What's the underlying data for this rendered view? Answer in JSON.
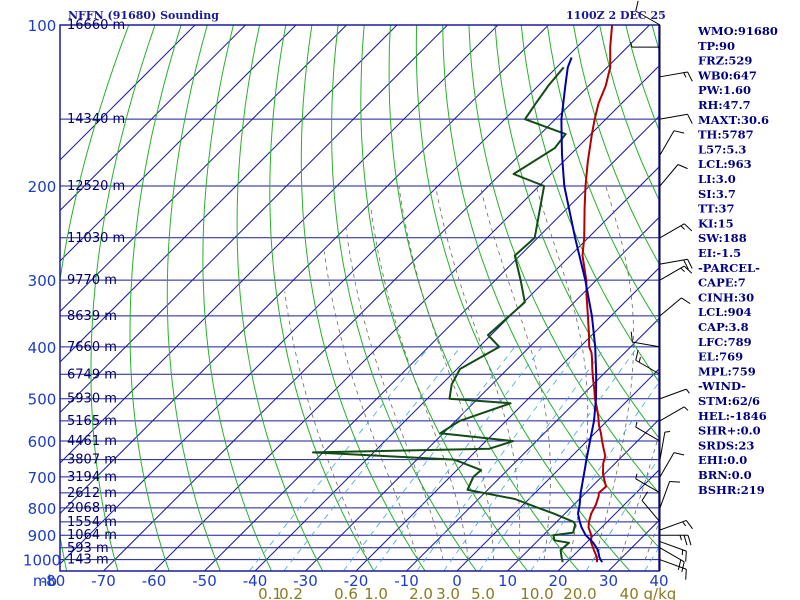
{
  "chart_data": {
    "type": "skew-t sounding",
    "title": "NFFN (91680) Sounding",
    "time": "1100Z  2 DEC 25",
    "pressure_axis_label": "mb",
    "pressure_ticks": [
      100,
      200,
      300,
      400,
      500,
      600,
      700,
      800,
      900,
      1000
    ],
    "pressure_tick_labels": [
      "100",
      "200",
      "300",
      "400",
      "500",
      "600",
      "700",
      "800",
      "900",
      "1000"
    ],
    "temperature_ticks": [
      -80,
      -70,
      -60,
      -50,
      -40,
      -30,
      -20,
      -10,
      0,
      10,
      20,
      30,
      40
    ],
    "temperature_tick_labels": [
      "-80",
      "-70",
      "-60",
      "-50",
      "-40",
      "-30",
      "-20",
      "-10",
      "0",
      "10",
      "20",
      "30",
      "40"
    ],
    "temperature_unit": "C",
    "mixing_ratio_labels": [
      "0.1",
      "0.2",
      "0.6",
      "1.0",
      "2.0",
      "3.0",
      "5.0",
      "10.0",
      "20.0",
      "40 g/kg"
    ],
    "heights": [
      {
        "p": 100,
        "label": "16660 m"
      },
      {
        "p": 150,
        "label": "14340 m"
      },
      {
        "p": 200,
        "label": "12520 m"
      },
      {
        "p": 250,
        "label": "11030 m"
      },
      {
        "p": 300,
        "label": "9770 m"
      },
      {
        "p": 350,
        "label": "8639 m"
      },
      {
        "p": 400,
        "label": "7660 m"
      },
      {
        "p": 450,
        "label": "6749 m"
      },
      {
        "p": 500,
        "label": "5930 m"
      },
      {
        "p": 550,
        "label": "5165 m"
      },
      {
        "p": 600,
        "label": "4461 m"
      },
      {
        "p": 650,
        "label": "3807 m"
      },
      {
        "p": 700,
        "label": "3194 m"
      },
      {
        "p": 750,
        "label": "2612 m"
      },
      {
        "p": 800,
        "label": "2068 m"
      },
      {
        "p": 850,
        "label": "1554 m"
      },
      {
        "p": 900,
        "label": "1064 m"
      },
      {
        "p": 950,
        "label": "593 m"
      },
      {
        "p": 1000,
        "label": "143 m"
      }
    ],
    "series": [
      {
        "name": "Temperature",
        "color": "#b40000",
        "points": [
          [
            1011,
            26
          ],
          [
            990,
            25
          ],
          [
            960,
            23
          ],
          [
            930,
            21
          ],
          [
            900,
            19.5
          ],
          [
            870,
            17.4
          ],
          [
            850,
            16.4
          ],
          [
            820,
            15.2
          ],
          [
            790,
            14.4
          ],
          [
            760,
            13.2
          ],
          [
            750,
            12.6
          ],
          [
            730,
            12.8
          ],
          [
            710,
            11.2
          ],
          [
            690,
            9.6
          ],
          [
            660,
            7.6
          ],
          [
            640,
            6.6
          ],
          [
            620,
            4.8
          ],
          [
            600,
            3.0
          ],
          [
            580,
            1.2
          ],
          [
            560,
            -0.8
          ],
          [
            540,
            -2.6
          ],
          [
            520,
            -4.6
          ],
          [
            500,
            -6.8
          ],
          [
            480,
            -8.8
          ],
          [
            460,
            -11.0
          ],
          [
            440,
            -13.2
          ],
          [
            420,
            -15.4
          ],
          [
            410,
            -16.6
          ],
          [
            400,
            -18.2
          ],
          [
            380,
            -20.6
          ],
          [
            350,
            -24.6
          ],
          [
            320,
            -29.0
          ],
          [
            300,
            -32.0
          ],
          [
            270,
            -37.6
          ],
          [
            250,
            -40.8
          ],
          [
            220,
            -46.6
          ],
          [
            200,
            -50.8
          ],
          [
            180,
            -55.2
          ],
          [
            160,
            -59.8
          ],
          [
            150,
            -62.2
          ],
          [
            140,
            -64.6
          ],
          [
            130,
            -66.6
          ],
          [
            120,
            -69.4
          ],
          [
            110,
            -73.4
          ],
          [
            100,
            -77.4
          ]
        ]
      },
      {
        "name": "Dewpoint",
        "color": "#124c12",
        "points": [
          [
            1011,
            19.2
          ],
          [
            990,
            18.0
          ],
          [
            960,
            16.4
          ],
          [
            930,
            16.6
          ],
          [
            920,
            13.2
          ],
          [
            900,
            12.0
          ],
          [
            890,
            15.4
          ],
          [
            860,
            14.2
          ],
          [
            850,
            13.4
          ],
          [
            820,
            7.8
          ],
          [
            800,
            3.6
          ],
          [
            770,
            -2.8
          ],
          [
            740,
            -14.0
          ],
          [
            700,
            -15.4
          ],
          [
            680,
            -15.2
          ],
          [
            650,
            -22.6
          ],
          [
            630,
            -52.0
          ],
          [
            620,
            -17.8
          ],
          [
            600,
            -14.6
          ],
          [
            580,
            -30.6
          ],
          [
            550,
            -29.2
          ],
          [
            510,
            -22.6
          ],
          [
            500,
            -35.6
          ],
          [
            470,
            -38.0
          ],
          [
            440,
            -39.4
          ],
          [
            400,
            -36.0
          ],
          [
            380,
            -40.6
          ],
          [
            330,
            -39.8
          ],
          [
            300,
            -45.0
          ],
          [
            270,
            -51.0
          ],
          [
            250,
            -50.6
          ],
          [
            200,
            -59.0
          ],
          [
            190,
            -67.4
          ],
          [
            170,
            -64.4
          ],
          [
            160,
            -65.0
          ],
          [
            150,
            -76.0
          ],
          [
            140,
            -77.0
          ],
          [
            130,
            -78.0
          ],
          [
            120,
            -78.6
          ]
        ]
      },
      {
        "name": "Parcel",
        "color": "#0000a8",
        "points": [
          [
            1011,
            27.0
          ],
          [
            990,
            25.5
          ],
          [
            960,
            23.8
          ],
          [
            930,
            21.4
          ],
          [
            900,
            18.4
          ],
          [
            870,
            16.0
          ],
          [
            850,
            14.6
          ],
          [
            820,
            12.6
          ],
          [
            790,
            11.2
          ],
          [
            750,
            9.0
          ],
          [
            700,
            6.4
          ],
          [
            650,
            3.6
          ],
          [
            600,
            0.6
          ],
          [
            550,
            -2.6
          ],
          [
            500,
            -6.6
          ],
          [
            450,
            -11.4
          ],
          [
            400,
            -17.0
          ],
          [
            350,
            -23.8
          ],
          [
            300,
            -32.2
          ],
          [
            250,
            -42.6
          ],
          [
            200,
            -55.0
          ],
          [
            175,
            -61.6
          ],
          [
            160,
            -65.8
          ],
          [
            150,
            -68.8
          ],
          [
            140,
            -71.6
          ],
          [
            130,
            -74.6
          ],
          [
            120,
            -77.8
          ],
          [
            115,
            -79.0
          ]
        ]
      }
    ],
    "dry_adiabats_C": [
      -80,
      -70,
      -60,
      -50,
      -40,
      -30,
      -20,
      -10,
      0,
      10,
      20,
      30,
      40,
      50,
      60,
      70,
      80,
      90,
      100,
      110,
      120,
      130,
      140,
      150
    ],
    "moist_adiabats_C": [
      -20,
      -10,
      -5,
      0,
      5,
      10,
      15,
      20,
      25,
      30,
      35,
      40
    ],
    "mixing_ratios": [
      0.1,
      0.2,
      0.6,
      1.0,
      2.0,
      3.0,
      5.0,
      10.0,
      20.0,
      40.0
    ],
    "indices": [
      "WMO:91680",
      "TP:90",
      "FRZ:529",
      "WB0:647",
      "PW:1.60",
      "RH:47.7",
      "MAXT:30.6",
      "TH:5787",
      "L57:5.3",
      "LCL:963",
      "LI:3.0",
      "SI:3.7",
      "TT:37",
      "KI:15",
      "SW:188",
      "EI:-1.5",
      "-PARCEL-",
      "CAPE:7",
      "CINH:30",
      "LCL:904",
      "CAP:3.8",
      "LFC:789",
      "EL:769",
      "MPL:759",
      "-WIND-",
      "STM:62/6",
      "HEL:-1846",
      "SHR+:0.0",
      "SRDS:23",
      "EHI:0.0",
      "BRN:0.0",
      "BSHR:219"
    ],
    "winds": [
      {
        "p": 1000,
        "dir": 110,
        "spd": 10
      },
      {
        "p": 950,
        "dir": 120,
        "spd": 20
      },
      {
        "p": 925,
        "dir": 110,
        "spd": 15
      },
      {
        "p": 900,
        "dir": 90,
        "spd": 25
      },
      {
        "p": 880,
        "dir": 70,
        "spd": 15
      },
      {
        "p": 850,
        "dir": 320,
        "spd": 10
      },
      {
        "p": 800,
        "dir": 20,
        "spd": 10
      },
      {
        "p": 750,
        "dir": 300,
        "spd": 5
      },
      {
        "p": 700,
        "dir": 30,
        "spd": 10
      },
      {
        "p": 650,
        "dir": 10,
        "spd": 5
      },
      {
        "p": 600,
        "dir": 300,
        "spd": 5
      },
      {
        "p": 550,
        "dir": 60,
        "spd": 5
      },
      {
        "p": 500,
        "dir": 70,
        "spd": 5
      },
      {
        "p": 450,
        "dir": 300,
        "spd": 15
      },
      {
        "p": 400,
        "dir": 280,
        "spd": 10
      },
      {
        "p": 350,
        "dir": 50,
        "spd": 10
      },
      {
        "p": 300,
        "dir": 60,
        "spd": 15
      },
      {
        "p": 280,
        "dir": 80,
        "spd": 20
      },
      {
        "p": 250,
        "dir": 60,
        "spd": 15
      },
      {
        "p": 200,
        "dir": 40,
        "spd": 10
      },
      {
        "p": 175,
        "dir": 30,
        "spd": 10
      },
      {
        "p": 150,
        "dir": 80,
        "spd": 10
      },
      {
        "p": 125,
        "dir": 80,
        "spd": 15
      },
      {
        "p": 110,
        "dir": 270,
        "spd": 5
      },
      {
        "p": 100,
        "dir": 300,
        "spd": 10
      }
    ]
  }
}
